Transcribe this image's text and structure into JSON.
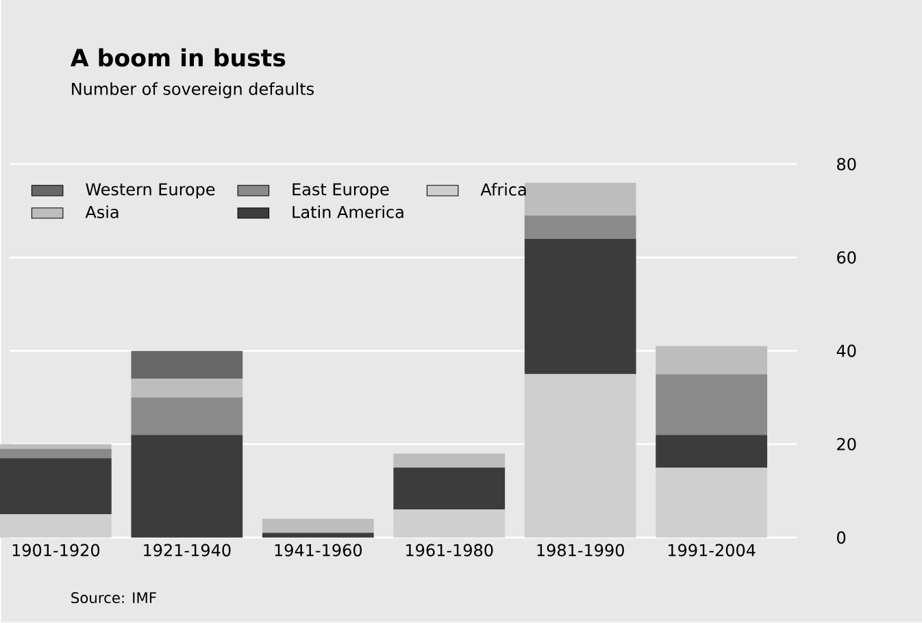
{
  "chart_data": {
    "type": "bar",
    "stacked": true,
    "title": "A boom in busts",
    "subtitle": "Number of sovereign defaults",
    "categories": [
      "1901-1920",
      "1921-1940",
      "1941-1960",
      "1961-1980",
      "1981-1990",
      "1991-2004"
    ],
    "series": [
      {
        "name": "Africa",
        "color": "#cfcfcf",
        "values": [
          5,
          0,
          0,
          6,
          35,
          15
        ]
      },
      {
        "name": "Latin America",
        "color": "#3c3c3c",
        "values": [
          12,
          22,
          1,
          9,
          29,
          7
        ]
      },
      {
        "name": "East Europe",
        "color": "#8a8a8a",
        "values": [
          2,
          8,
          0,
          0,
          5,
          13
        ]
      },
      {
        "name": "Asia",
        "color": "#bdbdbd",
        "values": [
          1,
          4,
          3,
          3,
          7,
          6
        ]
      },
      {
        "name": "Western Europe",
        "color": "#686868",
        "values": [
          0,
          6,
          0,
          0,
          0,
          0
        ]
      }
    ],
    "ylim": [
      0,
      80
    ],
    "yticks": [
      0,
      20,
      40,
      60,
      80
    ],
    "grid": "y",
    "legend": "top left",
    "annotations": [
      "Source: IMF"
    ]
  }
}
